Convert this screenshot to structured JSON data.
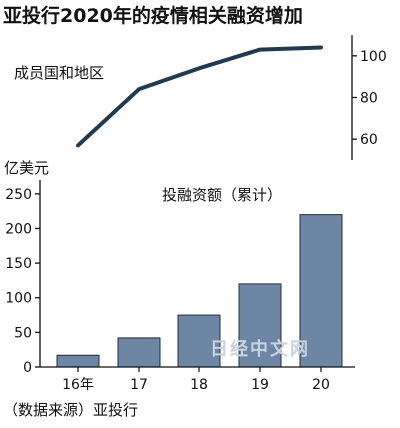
{
  "title": "亚投行2020年的疫情相关融资增加",
  "source": "（数据来源）亚投行",
  "watermark": "日经中文网",
  "chart_data": [
    {
      "type": "line",
      "series_label": "成员国和地区",
      "x": [
        "16年",
        "17",
        "18",
        "19",
        "20"
      ],
      "values": [
        57,
        84,
        94,
        103,
        104
      ],
      "ylim": [
        50,
        110
      ],
      "y_ticks": [
        60,
        80,
        100
      ],
      "axis_side": "right"
    },
    {
      "type": "bar",
      "title": "投融资额（累计）",
      "ylabel": "亿美元",
      "categories": [
        "16年",
        "17",
        "18",
        "19",
        "20"
      ],
      "values": [
        17,
        42,
        75,
        120,
        220
      ],
      "ylim": [
        0,
        270
      ],
      "y_ticks": [
        0,
        50,
        100,
        150,
        200,
        250
      ],
      "color": "#6d86a3"
    }
  ]
}
